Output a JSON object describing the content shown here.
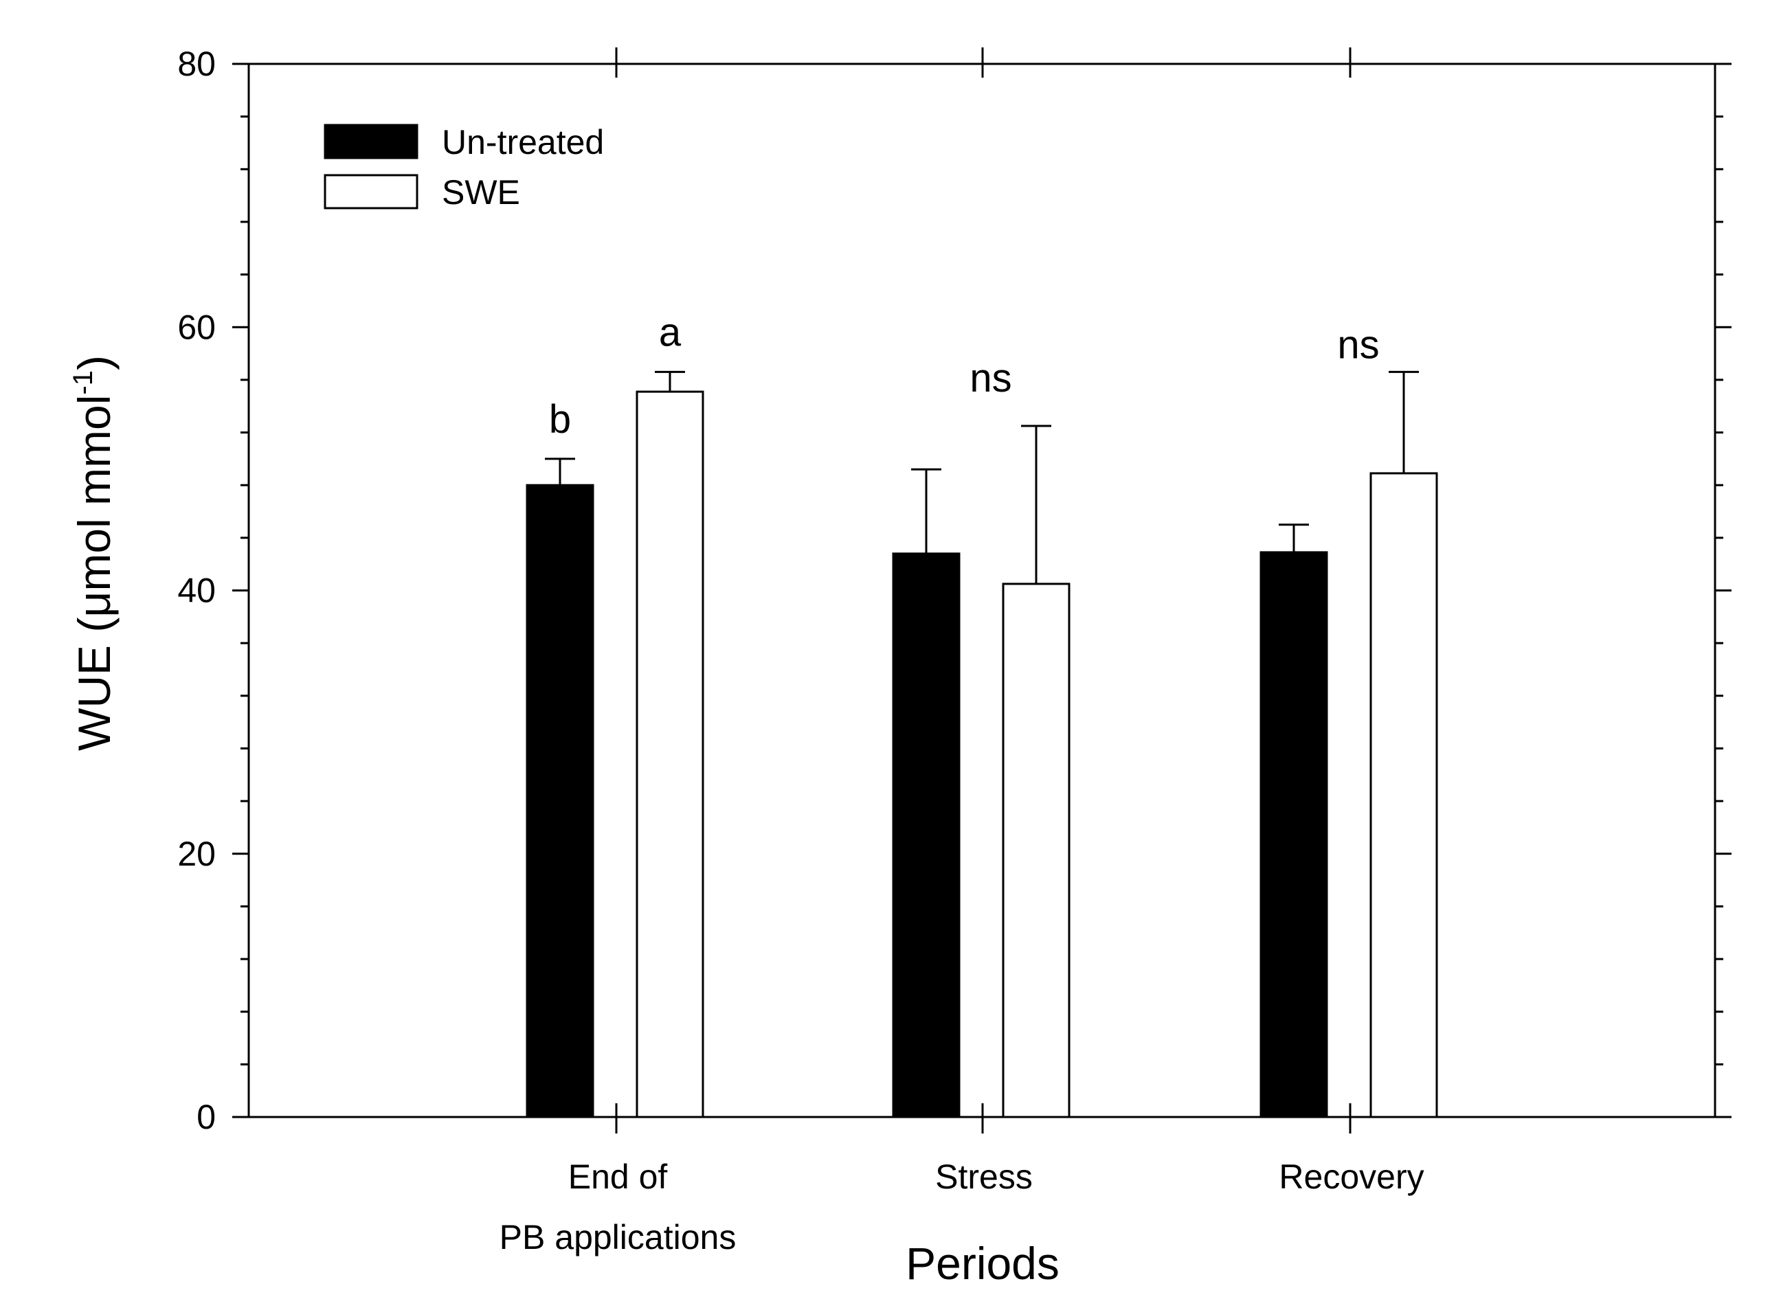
{
  "chart_data": {
    "type": "bar",
    "categories": [
      [
        "End of",
        "PB applications"
      ],
      [
        "Stress"
      ],
      [
        "Recovery"
      ]
    ],
    "series": [
      {
        "name": "Un-treated",
        "color": "#000000",
        "values": [
          48,
          42.8,
          42.9
        ],
        "errors": [
          2,
          6.4,
          2.1
        ]
      },
      {
        "name": "SWE",
        "color": "#ffffff",
        "values": [
          55.1,
          40.5,
          48.9
        ],
        "errors": [
          1.5,
          12,
          7.7
        ]
      }
    ],
    "significance": [
      "b",
      "a",
      "",
      "ns",
      "",
      "ns"
    ],
    "xlabel": "Periods",
    "ylabel": "WUE (μmol mmol",
    "ylabel_superscript": "-1",
    "ylabel_close": ")",
    "ylim": [
      0,
      80
    ],
    "yticks": [
      0,
      20,
      40,
      60,
      80
    ],
    "ytick_labels": [
      "0",
      "20",
      "40",
      "60",
      "80"
    ],
    "grid": false,
    "legend_position": "top-left"
  }
}
